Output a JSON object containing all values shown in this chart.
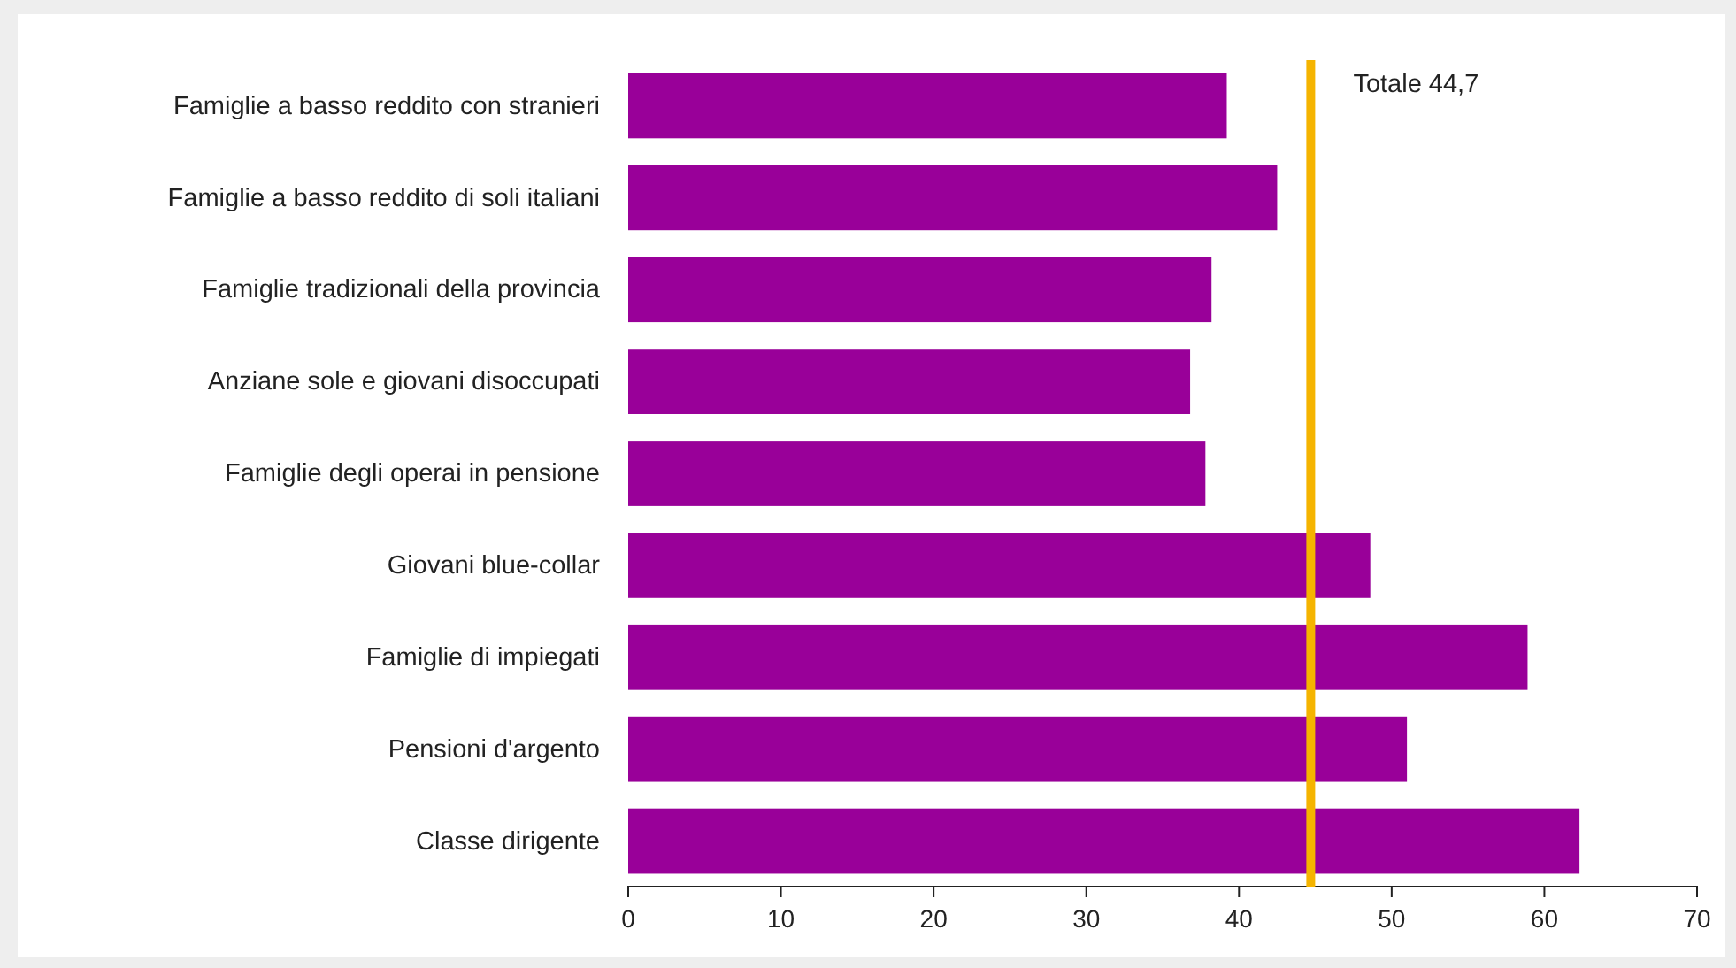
{
  "chart_data": {
    "type": "bar",
    "orientation": "horizontal",
    "categories": [
      "Famiglie a basso reddito con stranieri",
      "Famiglie a basso reddito di soli italiani",
      "Famiglie tradizionali della provincia",
      "Anziane sole e giovani disoccupati",
      "Famiglie degli operai in pensione",
      "Giovani blue-collar",
      "Famiglie di impiegati",
      "Pensioni d'argento",
      "Classe dirigente"
    ],
    "values": [
      39.2,
      42.5,
      38.2,
      36.8,
      37.8,
      48.6,
      58.9,
      51.0,
      62.3
    ],
    "color": "#990099",
    "xlim": [
      0,
      70
    ],
    "xticks": [
      0,
      10,
      20,
      30,
      40,
      50,
      60,
      70
    ],
    "ref_lines": [
      {
        "axis": "x",
        "value": 44.7,
        "label": "Totale 44,7",
        "color": "#f5b400"
      }
    ]
  }
}
